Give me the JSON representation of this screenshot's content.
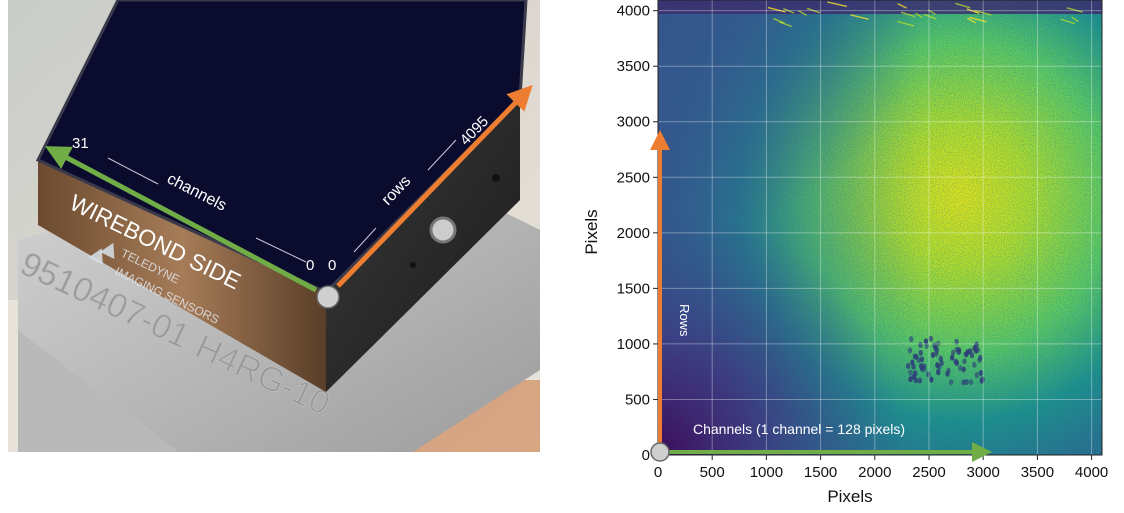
{
  "photo": {
    "left_end_label": "31",
    "channels_label": "channels",
    "channels_zero": "0",
    "rows_zero": "0",
    "rows_label": "rows",
    "rows_end_label": "4095",
    "wirebond_label": "WIREBOND SIDE",
    "maker_line1": "TELEDYNE",
    "maker_line2": "IMAGING SENSORS",
    "engraved_serial": "9510407-01",
    "engraved_model": "H4RG-10",
    "colors": {
      "channels_arrow": "#70ad47",
      "rows_arrow": "#ed7d31",
      "detector": "#0b0b2e"
    }
  },
  "map": {
    "ylabel": "Pixels",
    "xlabel": "Pixels",
    "rows_annotation": "Rows",
    "channels_annotation": "Channels (1 channel = 128 pixels)",
    "colors": {
      "rows_arrow": "#ed7d31",
      "channels_arrow": "#70ad47",
      "low": "#440154",
      "high": "#fde725"
    }
  },
  "chart_data": {
    "type": "heatmap",
    "title": "",
    "xlabel": "Pixels",
    "ylabel": "Pixels",
    "xlim": [
      0,
      4096
    ],
    "ylim": [
      0,
      4096
    ],
    "xticks": [
      0,
      500,
      1000,
      1500,
      2000,
      2500,
      3000,
      3500,
      4000
    ],
    "yticks": [
      0,
      500,
      1000,
      1500,
      2000,
      2500,
      3000,
      3500,
      4000
    ],
    "xtick_labels": [
      "0",
      "500",
      "1000",
      "1500",
      "2000",
      "2500",
      "3000",
      "3500",
      "4000"
    ],
    "ytick_labels": [
      "0",
      "500",
      "1000",
      "1500",
      "2000",
      "2500",
      "3000",
      "3500",
      "4000"
    ],
    "grid": true,
    "colormap": "viridis",
    "features": {
      "brightest_region_center": [
        3000,
        2200
      ],
      "dark_corner": "bottom-left",
      "dark_spot_cluster_center": [
        2650,
        850
      ]
    }
  }
}
